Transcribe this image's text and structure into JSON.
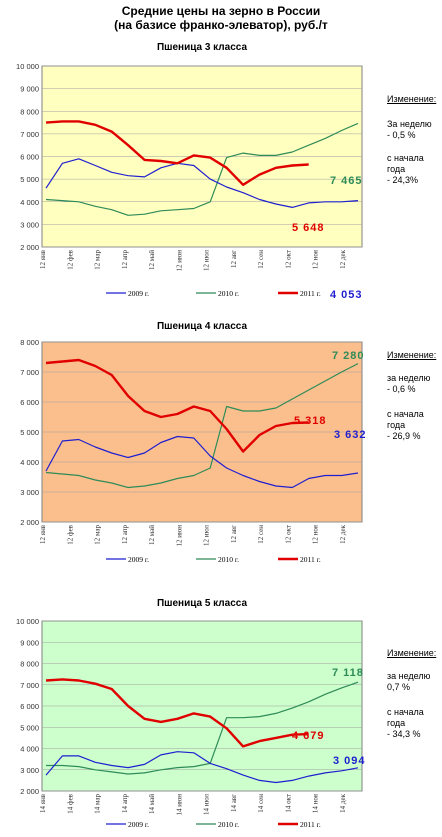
{
  "title_line1": "Средние цены на зерно в России",
  "title_line2": "(на базисе франко-элеватор), руб./т",
  "colors": {
    "s2009": "#1f1fd0",
    "s2010": "#2e8b57",
    "s2011": "#e00000",
    "grid": "#a0a0a0"
  },
  "chart_data": [
    {
      "type": "line",
      "title": "Пшеница 3  класса",
      "background": "#ffffc0",
      "ylim": [
        2000,
        10000
      ],
      "y_ticks": [
        "2 000",
        "3 000",
        "4 000",
        "5 000",
        "6 000",
        "7 000",
        "8 000",
        "9 000",
        "10 000"
      ],
      "x_ticks": [
        "12 янв",
        "12 фев",
        "12 мар",
        "12 апр",
        "12 май",
        "12 июн",
        "12 июл",
        "12 авг",
        "12 сен",
        "12 окт",
        "12 ноя",
        "12 дек"
      ],
      "legend": [
        "2009 г.",
        "2010 г.",
        "2011 г."
      ],
      "series": [
        {
          "name": "2009 г.",
          "values": [
            4600,
            5700,
            5900,
            5600,
            5300,
            5150,
            5100,
            5500,
            5700,
            5600,
            5000,
            4650,
            4400,
            4100,
            3900,
            3750,
            3950,
            4000,
            4000,
            4053
          ]
        },
        {
          "name": "2010 г.",
          "values": [
            4100,
            4050,
            4000,
            3800,
            3650,
            3400,
            3450,
            3600,
            3650,
            3700,
            4000,
            5950,
            6150,
            6050,
            6050,
            6200,
            6500,
            6800,
            7150,
            7465
          ]
        },
        {
          "name": "2011 г.",
          "values": [
            7500,
            7550,
            7550,
            7400,
            7100,
            6500,
            5850,
            5800,
            5700,
            6050,
            5950,
            5500,
            4750,
            5200,
            5500,
            5600,
            5648
          ]
        }
      ],
      "last_labels": [
        "4 053",
        "7 465",
        "5 648"
      ],
      "side": {
        "header": "Изменение:",
        "week_label": "За неделю",
        "week_value": "- 0,5 %",
        "ytd_label1": "с начала",
        "ytd_label2": "года",
        "ytd_value": "- 24,3%"
      }
    },
    {
      "type": "line",
      "title": "Пшеница 4 класса",
      "background": "#fbbf8e",
      "ylim": [
        2000,
        8000
      ],
      "y_ticks": [
        "2 000",
        "3 000",
        "4 000",
        "5 000",
        "6 000",
        "7 000",
        "8 000"
      ],
      "x_ticks": [
        "12 янв",
        "12 фев",
        "12 мар",
        "12 апр",
        "12 май",
        "12 июн",
        "12 июл",
        "12 авг",
        "12 сен",
        "12 окт",
        "12 ноя",
        "12 дек"
      ],
      "legend": [
        "2009 г.",
        "2010 г.",
        "2011 г."
      ],
      "series": [
        {
          "name": "2009 г.",
          "values": [
            3700,
            4700,
            4750,
            4500,
            4300,
            4150,
            4300,
            4650,
            4850,
            4800,
            4200,
            3800,
            3550,
            3350,
            3200,
            3150,
            3450,
            3550,
            3550,
            3632
          ]
        },
        {
          "name": "2010 г.",
          "values": [
            3650,
            3600,
            3550,
            3400,
            3300,
            3150,
            3200,
            3300,
            3450,
            3550,
            3800,
            5850,
            5700,
            5700,
            5800,
            6100,
            6400,
            6700,
            7000,
            7280
          ]
        },
        {
          "name": "2011 г.",
          "values": [
            7300,
            7350,
            7400,
            7200,
            6900,
            6200,
            5700,
            5500,
            5600,
            5850,
            5700,
            5100,
            4350,
            4900,
            5200,
            5300,
            5318
          ]
        }
      ],
      "last_labels": [
        "3 632",
        "7 280",
        "5 318"
      ],
      "side": {
        "header": "Изменение:",
        "week_label": "за  неделю",
        "week_value": "- 0,6 %",
        "ytd_label1": "с начала",
        "ytd_label2": "года",
        "ytd_value": "- 26,9 %"
      }
    },
    {
      "type": "line",
      "title": "Пшеница 5 класса",
      "background": "#ccffcc",
      "ylim": [
        2000,
        10000
      ],
      "y_ticks": [
        "2 000",
        "3 000",
        "4 000",
        "5 000",
        "6 000",
        "7 000",
        "8 000",
        "9 000",
        "10 000"
      ],
      "x_ticks": [
        "14 янв",
        "14 фев",
        "14 мар",
        "14 апр",
        "14 май",
        "14 июн",
        "14 июл",
        "14 авг",
        "14 сен",
        "14 окт",
        "14 ноя",
        "14 дек"
      ],
      "legend": [
        "2009 г.",
        "2010 г.",
        "2011 г."
      ],
      "series": [
        {
          "name": "2009 г.",
          "values": [
            2750,
            3650,
            3650,
            3350,
            3200,
            3100,
            3250,
            3700,
            3850,
            3800,
            3300,
            3050,
            2750,
            2500,
            2400,
            2500,
            2700,
            2850,
            2950,
            3094
          ]
        },
        {
          "name": "2010 г.",
          "values": [
            3200,
            3200,
            3150,
            3000,
            2900,
            2800,
            2850,
            3000,
            3100,
            3150,
            3300,
            5450,
            5450,
            5500,
            5650,
            5900,
            6200,
            6550,
            6850,
            7118
          ]
        },
        {
          "name": "2011 г.",
          "values": [
            7200,
            7250,
            7200,
            7050,
            6800,
            6000,
            5400,
            5250,
            5400,
            5650,
            5500,
            4950,
            4100,
            4350,
            4500,
            4650,
            4679
          ]
        }
      ],
      "last_labels": [
        "3 094",
        "7 118",
        "4 679"
      ],
      "side": {
        "header": "Изменение:",
        "week_label": "за  неделю",
        "week_value": "0,7 %",
        "ytd_label1": "с начала",
        "ytd_label2": "года",
        "ytd_value": "- 34,3 %"
      }
    }
  ]
}
